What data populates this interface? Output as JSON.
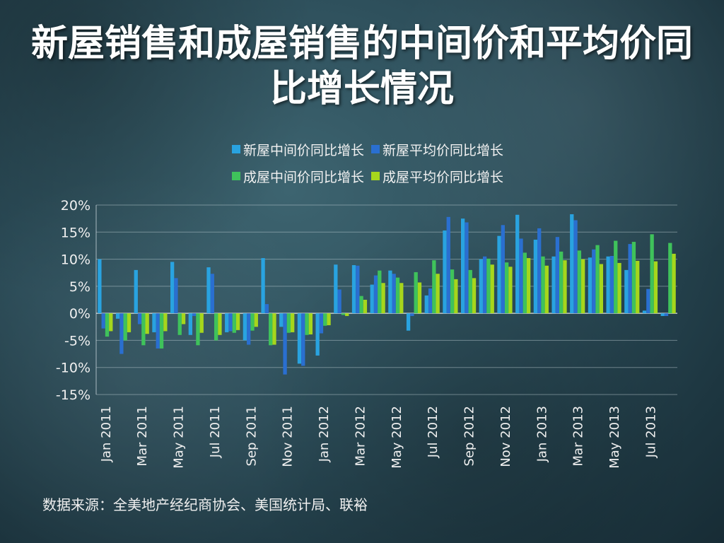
{
  "slide": {
    "title": "新屋销售和成屋销售的中间价和平均价同比增长情况",
    "source": "数据来源：全美地产经纪商协会、美国统计局、联裕"
  },
  "chart_data": {
    "type": "bar",
    "title": "",
    "xlabel": "",
    "ylabel": "",
    "ylim": [
      -15,
      20
    ],
    "yticks": [
      "20%",
      "15%",
      "10%",
      "5%",
      "0%",
      "-5%",
      "-10%",
      "-15%"
    ],
    "ytick_values": [
      20,
      15,
      10,
      5,
      0,
      -5,
      -10,
      -15
    ],
    "grid": true,
    "legend_position": "top",
    "categories": [
      "Jan 2011",
      "Feb 2011",
      "Mar 2011",
      "Apr 2011",
      "May 2011",
      "Jun 2011",
      "Jul 2011",
      "Aug 2011",
      "Sep 2011",
      "Oct 2011",
      "Nov 2011",
      "Dec 2011",
      "Jan 2012",
      "Feb 2012",
      "Mar 2012",
      "Apr 2012",
      "May 2012",
      "Jun 2012",
      "Jul 2012",
      "Aug 2012",
      "Sep 2012",
      "Oct 2012",
      "Nov 2012",
      "Dec 2012",
      "Jan 2013",
      "Feb 2013",
      "Mar 2013",
      "Apr 2013",
      "May 2013",
      "Jun 2013",
      "Jul 2013",
      "Aug 2013"
    ],
    "xtick_labels": [
      "Jan 2011",
      "",
      "Mar 2011",
      "",
      "May 2011",
      "",
      "Jul 2011",
      "",
      "Sep 2011",
      "",
      "Nov 2011",
      "",
      "Jan 2012",
      "",
      "Mar 2012",
      "",
      "May 2012",
      "",
      "Jul 2012",
      "",
      "Sep 2012",
      "",
      "Nov 2012",
      "",
      "Jan 2013",
      "",
      "Mar 2013",
      "",
      "May 2013",
      "",
      "Jul 2013",
      ""
    ],
    "series": [
      {
        "name": "新屋中间价同比增长",
        "color": "#29a3e0",
        "values": [
          10.0,
          -1.0,
          8.0,
          -3.5,
          9.5,
          -4.0,
          8.5,
          -3.5,
          -5.0,
          10.2,
          -2.5,
          -9.3,
          -7.8,
          9.0,
          8.9,
          5.3,
          7.9,
          -3.2,
          3.3,
          15.3,
          17.5,
          10.0,
          14.3,
          18.2,
          13.6,
          10.5,
          18.3,
          10.3,
          10.5,
          8.0,
          0.5,
          -0.5
        ]
      },
      {
        "name": "新屋平均价同比增长",
        "color": "#2a6fd0",
        "values": [
          -2.8,
          -7.5,
          -2.0,
          -6.5,
          6.5,
          -0.5,
          7.3,
          -3.3,
          -5.8,
          1.7,
          -11.3,
          -9.7,
          -3.7,
          4.4,
          8.8,
          7.0,
          7.3,
          -0.5,
          4.6,
          17.8,
          16.8,
          10.5,
          16.3,
          13.8,
          15.7,
          14.1,
          17.2,
          11.8,
          10.6,
          12.8,
          4.5,
          -0.5
        ]
      },
      {
        "name": "成屋中间价同比增长",
        "color": "#3fc25b",
        "values": [
          -4.3,
          -5.0,
          -5.9,
          -6.5,
          -4.0,
          -5.9,
          -5.0,
          -3.6,
          -3.2,
          -5.9,
          -3.6,
          -4.0,
          -2.3,
          -0.3,
          3.2,
          7.9,
          6.6,
          7.6,
          9.8,
          8.1,
          8.0,
          10.1,
          9.4,
          11.2,
          10.5,
          11.4,
          11.6,
          12.6,
          13.4,
          13.2,
          14.6,
          13.0
        ]
      },
      {
        "name": "成屋平均价同比增长",
        "color": "#a6d61c",
        "values": [
          -3.3,
          -3.5,
          -3.8,
          -3.3,
          -2.0,
          -3.6,
          -4.0,
          -3.1,
          -2.5,
          -5.8,
          -3.5,
          -3.9,
          -2.2,
          -0.5,
          2.5,
          5.6,
          5.6,
          5.7,
          7.3,
          6.3,
          6.5,
          9.0,
          8.6,
          10.2,
          8.8,
          9.8,
          10.0,
          9.1,
          9.3,
          9.7,
          9.6,
          11.0
        ]
      }
    ]
  }
}
